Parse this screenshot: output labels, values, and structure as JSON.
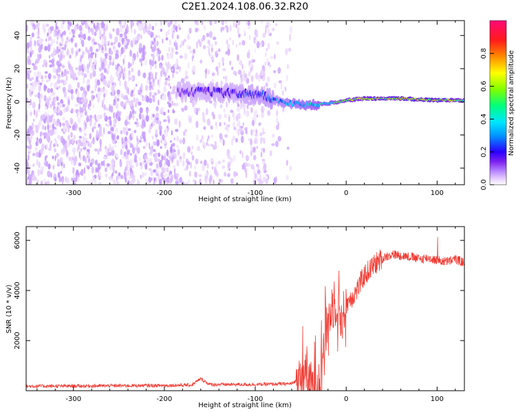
{
  "title": "C2E1.2024.108.06.32.R20",
  "chart_data": [
    {
      "type": "heatmap",
      "ylabel": "Frequency (Hz)",
      "xlabel": "Height of straight line (km)",
      "xlim": [
        -352,
        130
      ],
      "ylim": [
        -50,
        49
      ],
      "xticks": [
        -300,
        -200,
        -100,
        0,
        100
      ],
      "yticks": [
        -40,
        -20,
        0,
        20,
        40
      ],
      "colorbar": {
        "label": "Normalized spectral amplitude",
        "range": [
          0,
          1
        ],
        "ticks": [
          0.0,
          0.2,
          0.4,
          0.6,
          0.8
        ],
        "colormap": [
          "#ffffff",
          "#e3c8ff",
          "#b98aff",
          "#7d22f0",
          "#2a00ff",
          "#0096ff",
          "#00e6ff",
          "#00ff7f",
          "#7fff00",
          "#ffff00",
          "#ff8c00",
          "#ff1a1a",
          "#ff0a78"
        ]
      },
      "noise_region_km": [
        -352,
        -60
      ],
      "signal_line": {
        "x_km": [
          -185,
          -150,
          -120,
          -90,
          -80,
          -60,
          -40,
          -20,
          0,
          20,
          60,
          100,
          130
        ],
        "freq_hz": [
          6,
          6,
          5,
          4,
          1,
          -1,
          -2,
          -1,
          1,
          2,
          2,
          1,
          1
        ],
        "amplitude": [
          0.3,
          0.32,
          0.35,
          0.4,
          0.45,
          0.5,
          0.55,
          0.62,
          0.7,
          0.75,
          0.78,
          0.82,
          0.7
        ]
      }
    },
    {
      "type": "line",
      "ylabel": "SNR (10 * v/v)",
      "xlabel": "Height of straight line (km)",
      "xlim": [
        -352,
        130
      ],
      "ylim": [
        0,
        6550
      ],
      "xticks": [
        -300,
        -200,
        -100,
        0,
        100
      ],
      "yticks": [
        2000,
        4000,
        6000
      ],
      "color": "#f03a32",
      "series": [
        {
          "x": [
            -352,
            -300,
            -250,
            -200,
            -170,
            -160,
            -150,
            -100,
            -60,
            -50,
            -45,
            -40,
            -35,
            -30,
            -25,
            -20,
            -15,
            -10,
            -5,
            0,
            10,
            20,
            30,
            40,
            50,
            60,
            70,
            80,
            90,
            95,
            100,
            110,
            120,
            130
          ],
          "y": [
            150,
            160,
            170,
            180,
            200,
            450,
            220,
            220,
            250,
            500,
            900,
            300,
            200,
            500,
            1700,
            2800,
            3300,
            3500,
            2800,
            3500,
            3900,
            4600,
            5000,
            5300,
            5450,
            5400,
            5350,
            5250,
            5300,
            5250,
            5200,
            5150,
            5250,
            5100
          ]
        }
      ]
    }
  ]
}
